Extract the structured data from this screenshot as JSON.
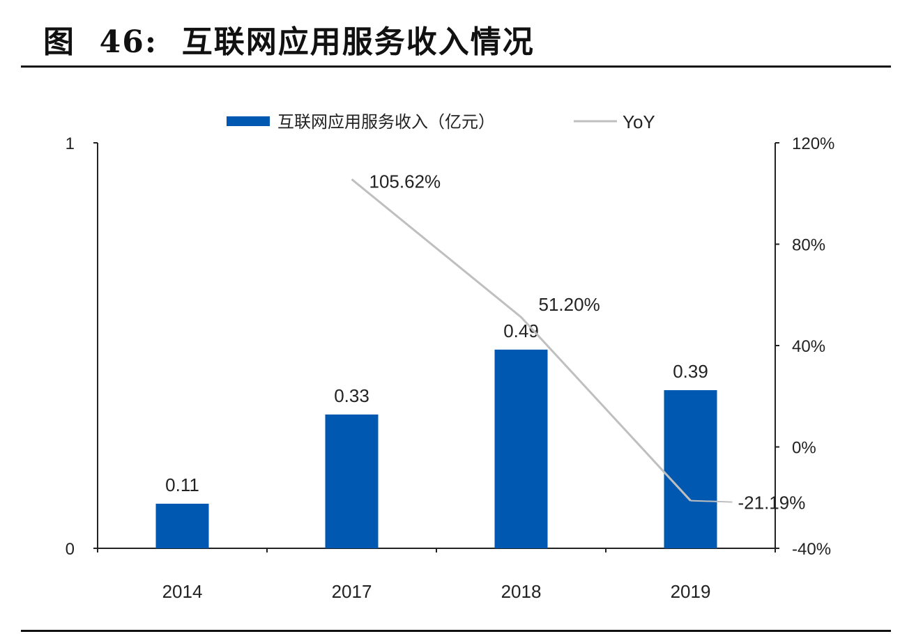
{
  "title": "图  46:  互联网应用服务收入情况",
  "colors": {
    "bar": "#0058B0",
    "line": "#BFBFBF",
    "text": "#222222"
  },
  "chart_data": {
    "type": "bar+line",
    "categories": [
      "2014",
      "2017",
      "2018",
      "2019"
    ],
    "series": [
      {
        "name": "互联网应用服务收入（亿元）",
        "type": "bar",
        "axis": "left",
        "values": [
          0.11,
          0.33,
          0.49,
          0.39
        ],
        "labels": [
          "0.11",
          "0.33",
          "0.49",
          "0.39"
        ]
      },
      {
        "name": "YoY",
        "type": "line",
        "axis": "right",
        "values": [
          null,
          105.62,
          51.2,
          -21.19
        ],
        "labels": [
          "",
          "105.62%",
          "51.20%",
          "-21.19%"
        ]
      }
    ],
    "left_axis": {
      "ylim": [
        0,
        1
      ],
      "ticks": [
        "0",
        "1"
      ]
    },
    "right_axis": {
      "ylim": [
        -40,
        120
      ],
      "ticks": [
        "-40%",
        "0%",
        "40%",
        "80%",
        "120%"
      ]
    },
    "legend": "top",
    "grid": false
  }
}
